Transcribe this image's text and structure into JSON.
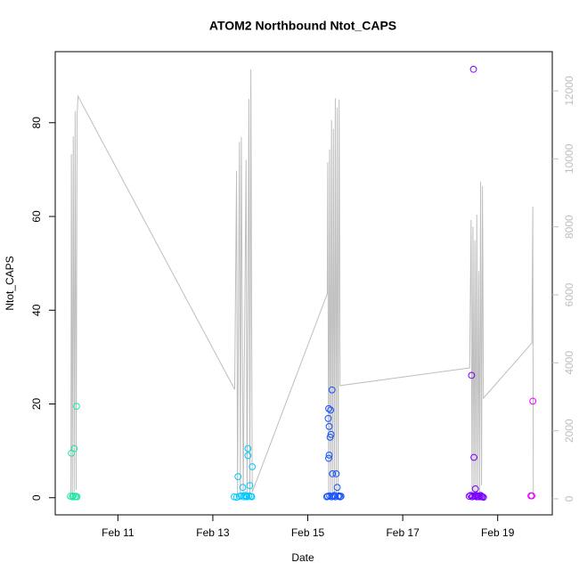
{
  "chart_data": {
    "type": "scatter",
    "title": "ATOM2 Northbound Ntot_CAPS",
    "xlabel": "Date",
    "ylabel": "Ntot_CAPS",
    "xlim": [
      9.68,
      20.15
    ],
    "xticks": [
      {
        "value": 11,
        "label": "Feb 11"
      },
      {
        "value": 13,
        "label": "Feb 13"
      },
      {
        "value": 15,
        "label": "Feb 15"
      },
      {
        "value": 17,
        "label": "Feb 17"
      },
      {
        "value": 19,
        "label": "Feb 19"
      }
    ],
    "ylim": [
      -3.66,
      95.16
    ],
    "yticks": [
      0,
      20,
      40,
      60,
      80
    ],
    "y2lim": [
      -472,
      13152
    ],
    "y2ticks": [
      0,
      2000,
      4000,
      6000,
      8000,
      10000,
      12000
    ],
    "y2color": "#bebebe",
    "series": [
      {
        "type": "line",
        "axis": "y2",
        "color": "#bebebe",
        "x": [
          10.01,
          10.02,
          10.04,
          10.06,
          10.08,
          10.1,
          10.12,
          10.14,
          10.16,
          13.46,
          13.5,
          13.52,
          13.56,
          13.58,
          13.6,
          13.64,
          13.7,
          13.72,
          13.76,
          13.78,
          13.8,
          13.83,
          15.41,
          15.42,
          15.44,
          15.46,
          15.48,
          15.5,
          15.52,
          15.54,
          15.56,
          15.58,
          15.6,
          15.62,
          15.64,
          15.66,
          15.68,
          18.41,
          18.44,
          18.46,
          18.48,
          18.5,
          18.52,
          18.54,
          18.56,
          18.58,
          18.6,
          18.62,
          18.64,
          18.66,
          18.68,
          18.7,
          19.72,
          19.74,
          19.75
        ],
        "values": [
          0,
          10140,
          130,
          10660,
          210,
          11400,
          260,
          11270,
          11840,
          3220,
          9650,
          100,
          10500,
          120,
          10640,
          80,
          9970,
          60,
          11760,
          100,
          12630,
          200,
          6030,
          9900,
          80,
          10280,
          100,
          11140,
          60,
          10880,
          80,
          11780,
          100,
          11500,
          80,
          11740,
          3330,
          3850,
          8200,
          80,
          8000,
          60,
          7600,
          100,
          8360,
          200,
          6700,
          100,
          9330,
          400,
          9200,
          2960,
          4580,
          8600,
          100
        ]
      },
      {
        "type": "scatter",
        "color": "#1de9a0",
        "x": [
          10.0,
          10.02,
          10.04,
          10.06,
          10.08,
          10.1,
          10.12,
          10.13,
          10.14
        ],
        "values": [
          0.3,
          9.5,
          0.2,
          0.4,
          10.5,
          0.2,
          0.3,
          19.5,
          0.2
        ]
      },
      {
        "type": "scatter",
        "color": "#00c8ff",
        "x": [
          13.45,
          13.5,
          13.53,
          13.56,
          13.6,
          13.63,
          13.65,
          13.68,
          13.7,
          13.72,
          13.74,
          13.74,
          13.76,
          13.78,
          13.8,
          13.82,
          13.83
        ],
        "values": [
          0.2,
          0.1,
          4.5,
          0.3,
          0.4,
          2.2,
          0.2,
          0.5,
          0.3,
          0.2,
          10.5,
          9.0,
          0.4,
          2.6,
          0.3,
          0.2,
          6.6
        ]
      },
      {
        "type": "scatter",
        "color": "#1450ff",
        "x": [
          15.4,
          15.42,
          15.43,
          15.44,
          15.44,
          15.45,
          15.45,
          15.46,
          15.47,
          15.48,
          15.49,
          15.5,
          15.51,
          15.52,
          15.54,
          15.56,
          15.58,
          15.6,
          15.62,
          15.64,
          15.66,
          15.68,
          15.7
        ],
        "values": [
          0.2,
          0.3,
          16.9,
          8.4,
          19.0,
          15.2,
          9.1,
          0.4,
          12.9,
          18.7,
          13.5,
          0.2,
          23.0,
          5.1,
          0.3,
          0.5,
          0.2,
          5.1,
          2.2,
          0.3,
          0.4,
          0.2,
          0.3
        ]
      },
      {
        "type": "scatter",
        "color": "#7a00ff",
        "x": [
          18.4,
          18.43,
          18.45,
          18.46,
          18.48,
          18.49,
          18.5,
          18.52,
          18.53,
          18.54,
          18.56,
          18.58,
          18.6,
          18.62,
          18.64,
          18.66,
          18.68,
          18.7
        ],
        "values": [
          0.3,
          0.5,
          26.1,
          0.2,
          0.4,
          91.4,
          8.6,
          0.3,
          1.9,
          0.5,
          0.2,
          0.4,
          0.3,
          0.2,
          0.5,
          0.3,
          0.2,
          0.1
        ]
      },
      {
        "type": "scatter",
        "color": "#e600ff",
        "x": [
          19.7,
          19.72,
          19.74
        ],
        "values": [
          0.4,
          0.4,
          20.6
        ]
      }
    ]
  }
}
